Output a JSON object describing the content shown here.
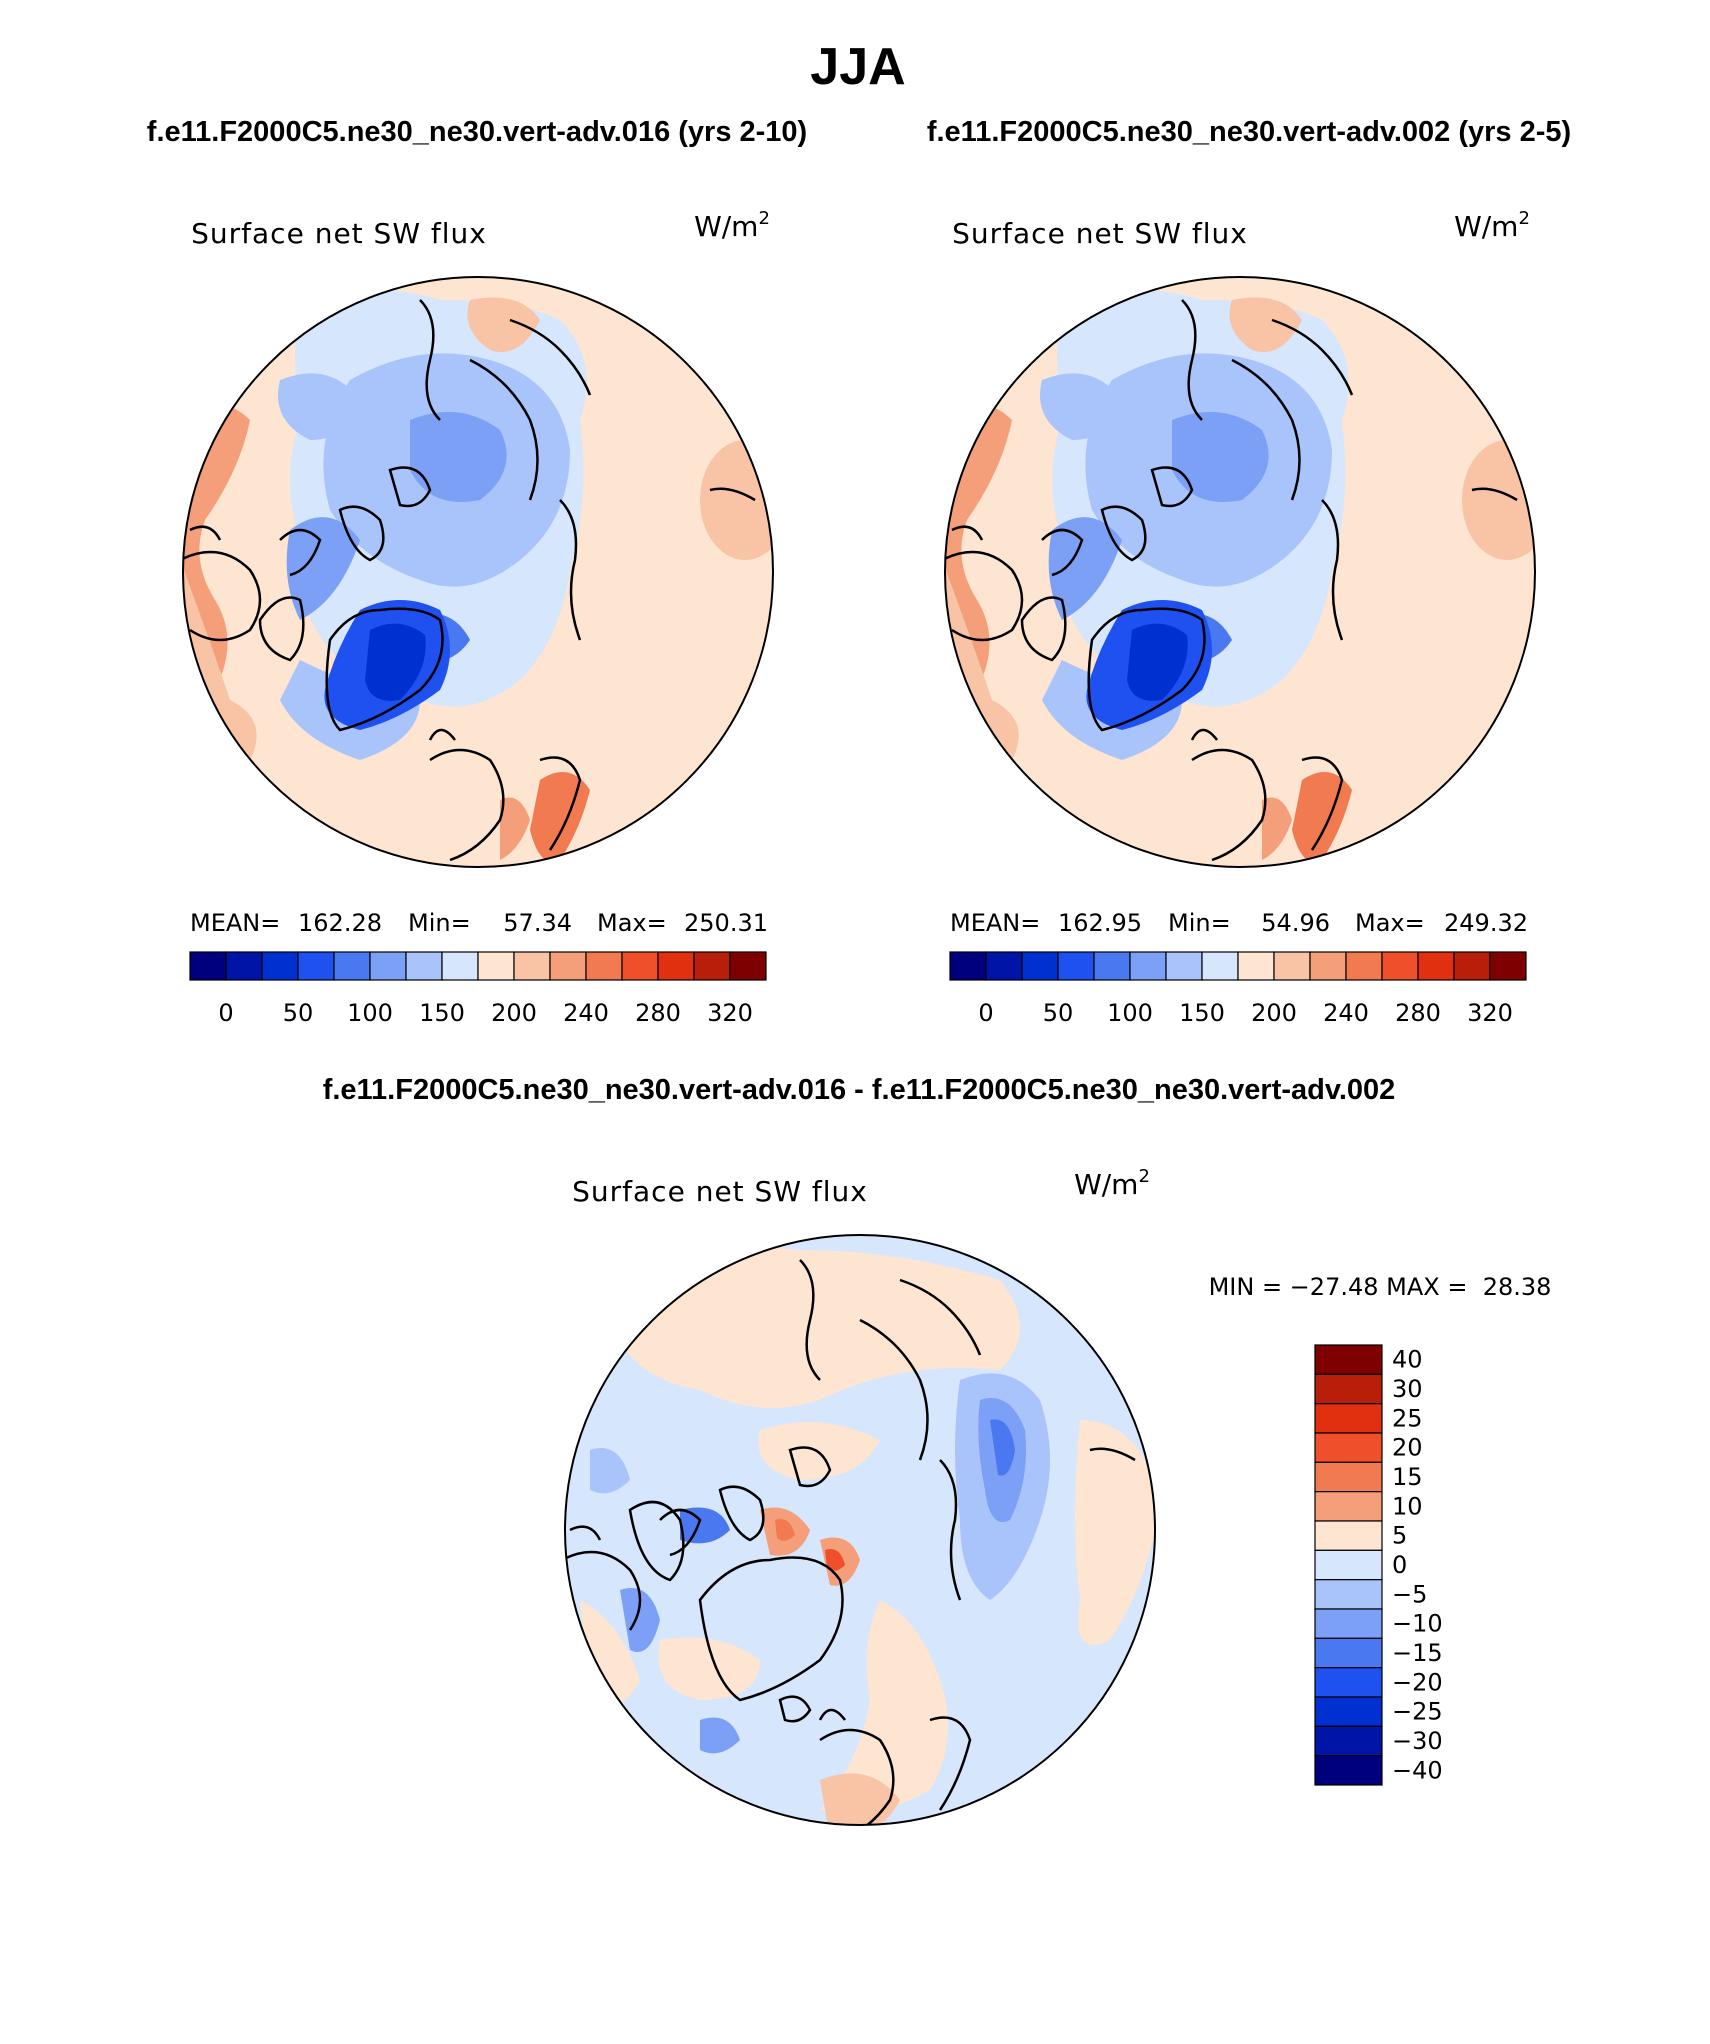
{
  "title": "JJA",
  "panels": [
    {
      "heading": "f.e11.F2000C5.ne30_ne30.vert-adv.016 (yrs 2-10)",
      "field": "Surface net SW flux",
      "units": "W/m",
      "units_sup": "2",
      "stats": {
        "mean_label": "MEAN=",
        "mean": "162.28",
        "min_label": "Min=",
        "min": "57.34",
        "max_label": "Max=",
        "max": "250.31"
      }
    },
    {
      "heading": "f.e11.F2000C5.ne30_ne30.vert-adv.002 (yrs 2-5)",
      "field": "Surface net SW flux",
      "units": "W/m",
      "units_sup": "2",
      "stats": {
        "mean_label": "MEAN=",
        "mean": "162.95",
        "min_label": "Min=",
        "min": "54.96",
        "max_label": "Max=",
        "max": "249.32"
      }
    }
  ],
  "diff": {
    "heading": "f.e11.F2000C5.ne30_ne30.vert-adv.016 - f.e11.F2000C5.ne30_ne30.vert-adv.002",
    "field": "Surface net SW flux",
    "units": "W/m",
    "units_sup": "2",
    "minmax": "MIN = −27.48 MAX =  28.38"
  },
  "abs_colorbar": {
    "colors": [
      "#00007f",
      "#0015a8",
      "#0030d0",
      "#1f50f0",
      "#4a78f0",
      "#7ba0f5",
      "#a8c4fa",
      "#d6e6fc",
      "#fde5d2",
      "#f9c3a6",
      "#f59f7a",
      "#f27a50",
      "#ef4f2a",
      "#e03010",
      "#b81e0a",
      "#7f0000"
    ],
    "labels": [
      "0",
      "50",
      "100",
      "150",
      "200",
      "240",
      "280",
      "320"
    ]
  },
  "diff_colorbar": {
    "colors": [
      "#7f0000",
      "#b81e0a",
      "#e03010",
      "#ef4f2a",
      "#f27a50",
      "#f59f7a",
      "#fde5d2",
      "#d6e6fc",
      "#a8c4fa",
      "#7ba0f5",
      "#4a78f0",
      "#1f50f0",
      "#0030d0",
      "#0015a8",
      "#00007f"
    ],
    "labels": [
      "40",
      "30",
      "25",
      "20",
      "15",
      "10",
      "5",
      "0",
      "−5",
      "−10",
      "−15",
      "−20",
      "−25",
      "−30",
      "−40"
    ]
  }
}
